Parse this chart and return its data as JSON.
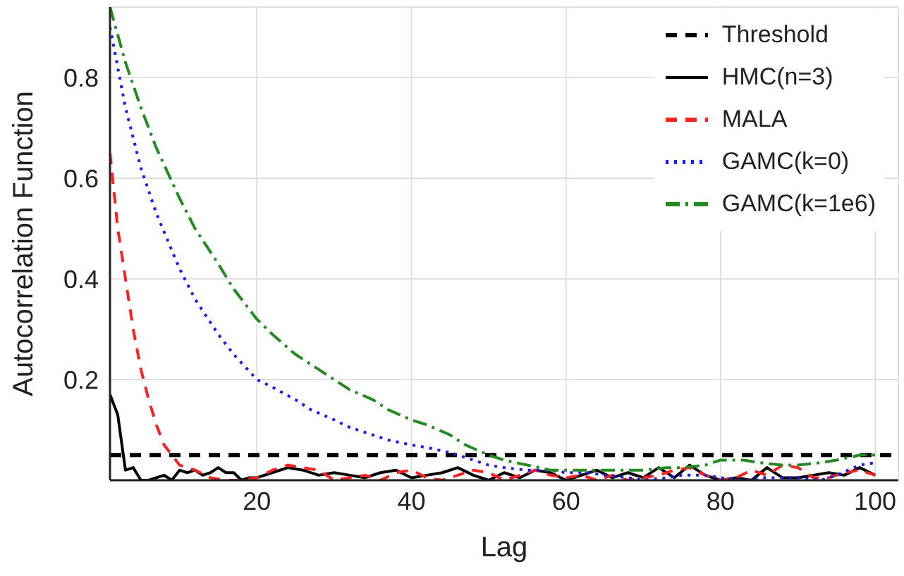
{
  "chart_data": {
    "type": "line",
    "xlabel": "Lag",
    "ylabel": "Autocorrelation Function",
    "xlim": [
      1,
      103
    ],
    "ylim": [
      0,
      0.94
    ],
    "xticks": [
      20,
      40,
      60,
      80,
      100
    ],
    "yticks": [
      0.2,
      0.4,
      0.6,
      0.8
    ],
    "grid": true,
    "legend": "top right",
    "marker": "none",
    "ref_lines": [
      {
        "axis": "y",
        "value": 0.05,
        "label": "Threshold",
        "color": "#000000",
        "line_style": "dashed"
      }
    ],
    "series": [
      {
        "name": "HMC(n=3)",
        "color": "#000000",
        "line_style": "solid",
        "x": [
          1,
          2,
          3,
          4,
          5,
          6,
          7,
          8,
          9,
          10,
          11,
          12,
          13,
          14,
          15,
          16,
          17,
          18,
          19,
          20,
          22,
          24,
          26,
          28,
          30,
          32,
          34,
          36,
          38,
          40,
          42,
          44,
          46,
          48,
          50,
          52,
          54,
          56,
          58,
          60,
          62,
          64,
          66,
          68,
          70,
          72,
          74,
          76,
          78,
          80,
          82,
          84,
          86,
          88,
          90,
          92,
          94,
          96,
          98,
          100
        ],
        "values": [
          0.17,
          0.13,
          0.02,
          0.025,
          0.0,
          0.0,
          0.005,
          0.01,
          0.0,
          0.02,
          0.015,
          0.02,
          0.01,
          0.015,
          0.025,
          0.015,
          0.015,
          0.0,
          0.005,
          0.005,
          0.015,
          0.025,
          0.02,
          0.01,
          0.015,
          0.01,
          0.005,
          0.015,
          0.02,
          0.005,
          0.01,
          0.015,
          0.025,
          0.01,
          0.0,
          0.015,
          0.005,
          0.02,
          0.015,
          0.0,
          0.01,
          0.02,
          0.005,
          0.015,
          0.005,
          0.025,
          0.005,
          0.03,
          0.01,
          0.0,
          0.005,
          0.0,
          0.025,
          0.005,
          0.005,
          0.01,
          0.015,
          0.01,
          0.025,
          0.01
        ]
      },
      {
        "name": "MALA",
        "color": "#ff2020",
        "line_style": "dashed",
        "x": [
          1,
          2,
          3,
          4,
          5,
          6,
          7,
          8,
          9,
          10,
          12,
          14,
          16,
          18,
          20,
          22,
          24,
          26,
          28,
          30,
          32,
          34,
          36,
          38,
          40,
          42,
          44,
          46,
          48,
          50,
          52,
          54,
          56,
          58,
          60,
          62,
          64,
          66,
          68,
          70,
          72,
          74,
          76,
          78,
          80,
          82,
          84,
          86,
          88,
          90,
          92,
          94,
          96,
          98,
          100
        ],
        "values": [
          0.65,
          0.5,
          0.4,
          0.3,
          0.22,
          0.16,
          0.11,
          0.07,
          0.05,
          0.03,
          0.02,
          0.005,
          0.0,
          0.0,
          0.005,
          0.02,
          0.03,
          0.025,
          0.02,
          0.0,
          0.005,
          0.01,
          0.0,
          0.015,
          0.02,
          0.005,
          0.0,
          0.01,
          0.02,
          0.015,
          0.0,
          0.01,
          0.02,
          0.01,
          0.005,
          0.01,
          0.0,
          0.01,
          0.0,
          0.005,
          0.01,
          0.02,
          0.025,
          0.01,
          0.0,
          0.005,
          0.02,
          0.01,
          0.03,
          0.025,
          0.005,
          0.005,
          0.015,
          0.02,
          0.01
        ]
      },
      {
        "name": "GAMC(k=0)",
        "color": "#1a1aff",
        "line_style": "dotted",
        "x": [
          1,
          3,
          5,
          7,
          10,
          12,
          15,
          17,
          20,
          22,
          25,
          27,
          30,
          32,
          35,
          37,
          40,
          42,
          45,
          47,
          50,
          52,
          55,
          58,
          60,
          63,
          65,
          68,
          70,
          73,
          75,
          78,
          80,
          83,
          85,
          88,
          90,
          93,
          95,
          98,
          100
        ],
        "values": [
          0.9,
          0.74,
          0.62,
          0.53,
          0.42,
          0.36,
          0.29,
          0.25,
          0.2,
          0.185,
          0.16,
          0.14,
          0.12,
          0.105,
          0.09,
          0.08,
          0.07,
          0.065,
          0.055,
          0.045,
          0.03,
          0.025,
          0.02,
          0.02,
          0.015,
          0.015,
          0.01,
          0.005,
          0.0,
          0.005,
          0.01,
          0.01,
          0.005,
          0.0,
          0.005,
          0.005,
          0.005,
          0.0,
          0.01,
          0.03,
          0.035
        ]
      },
      {
        "name": "GAMC(k=1e6)",
        "color": "#228b22",
        "line_style": "dashdot",
        "x": [
          1,
          3,
          5,
          7,
          10,
          12,
          15,
          17,
          20,
          22,
          25,
          27,
          30,
          32,
          35,
          37,
          40,
          42,
          45,
          47,
          50,
          52,
          55,
          58,
          60,
          63,
          65,
          68,
          70,
          73,
          75,
          78,
          80,
          83,
          85,
          88,
          90,
          93,
          95,
          98,
          100
        ],
        "values": [
          0.94,
          0.83,
          0.74,
          0.66,
          0.56,
          0.5,
          0.43,
          0.38,
          0.32,
          0.29,
          0.25,
          0.23,
          0.2,
          0.18,
          0.16,
          0.14,
          0.12,
          0.11,
          0.09,
          0.07,
          0.05,
          0.04,
          0.03,
          0.02,
          0.02,
          0.02,
          0.02,
          0.02,
          0.02,
          0.025,
          0.025,
          0.03,
          0.04,
          0.04,
          0.035,
          0.03,
          0.03,
          0.035,
          0.04,
          0.05,
          0.05
        ]
      }
    ]
  }
}
